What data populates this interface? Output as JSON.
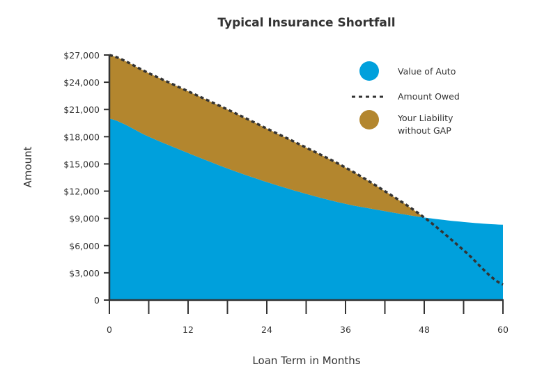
{
  "chart_data": {
    "type": "area",
    "title": "Typical Insurance Shortfall",
    "xlabel": "Loan Term in Months",
    "ylabel": "Amount",
    "xlim": [
      0,
      60
    ],
    "ylim": [
      0,
      27000
    ],
    "x_ticks": [
      0,
      12,
      24,
      36,
      48,
      60
    ],
    "x_tick_labels": [
      "0",
      "12",
      "24",
      "36",
      "48",
      "60"
    ],
    "y_ticks": [
      0,
      3000,
      6000,
      9000,
      12000,
      15000,
      18000,
      21000,
      24000,
      27000
    ],
    "y_tick_labels": [
      "0",
      "$3,000",
      "$6,000",
      "$9,000",
      "$12,000",
      "$15,000",
      "$18,000",
      "$21,000",
      "$24,000",
      "$27,000"
    ],
    "grid": false,
    "legend_position": "top-right",
    "x": [
      0,
      6,
      12,
      18,
      24,
      30,
      36,
      42,
      48,
      54,
      60
    ],
    "series": [
      {
        "name": "Value of Auto",
        "style": "area",
        "color": "#00a0dc",
        "values": [
          20000,
          18000,
          16200,
          14500,
          13000,
          11700,
          10600,
          9800,
          9100,
          8600,
          8300
        ]
      },
      {
        "name": "Amount Owed",
        "style": "dashed-line",
        "color": "#333333",
        "values": [
          27000,
          25000,
          23000,
          21000,
          18900,
          16800,
          14600,
          12000,
          9100,
          5500,
          1700
        ]
      },
      {
        "name": "Your Liability without GAP",
        "style": "area-between",
        "color": "#b3862e",
        "legend_lines": [
          "Your Liability",
          "without GAP"
        ]
      }
    ]
  }
}
